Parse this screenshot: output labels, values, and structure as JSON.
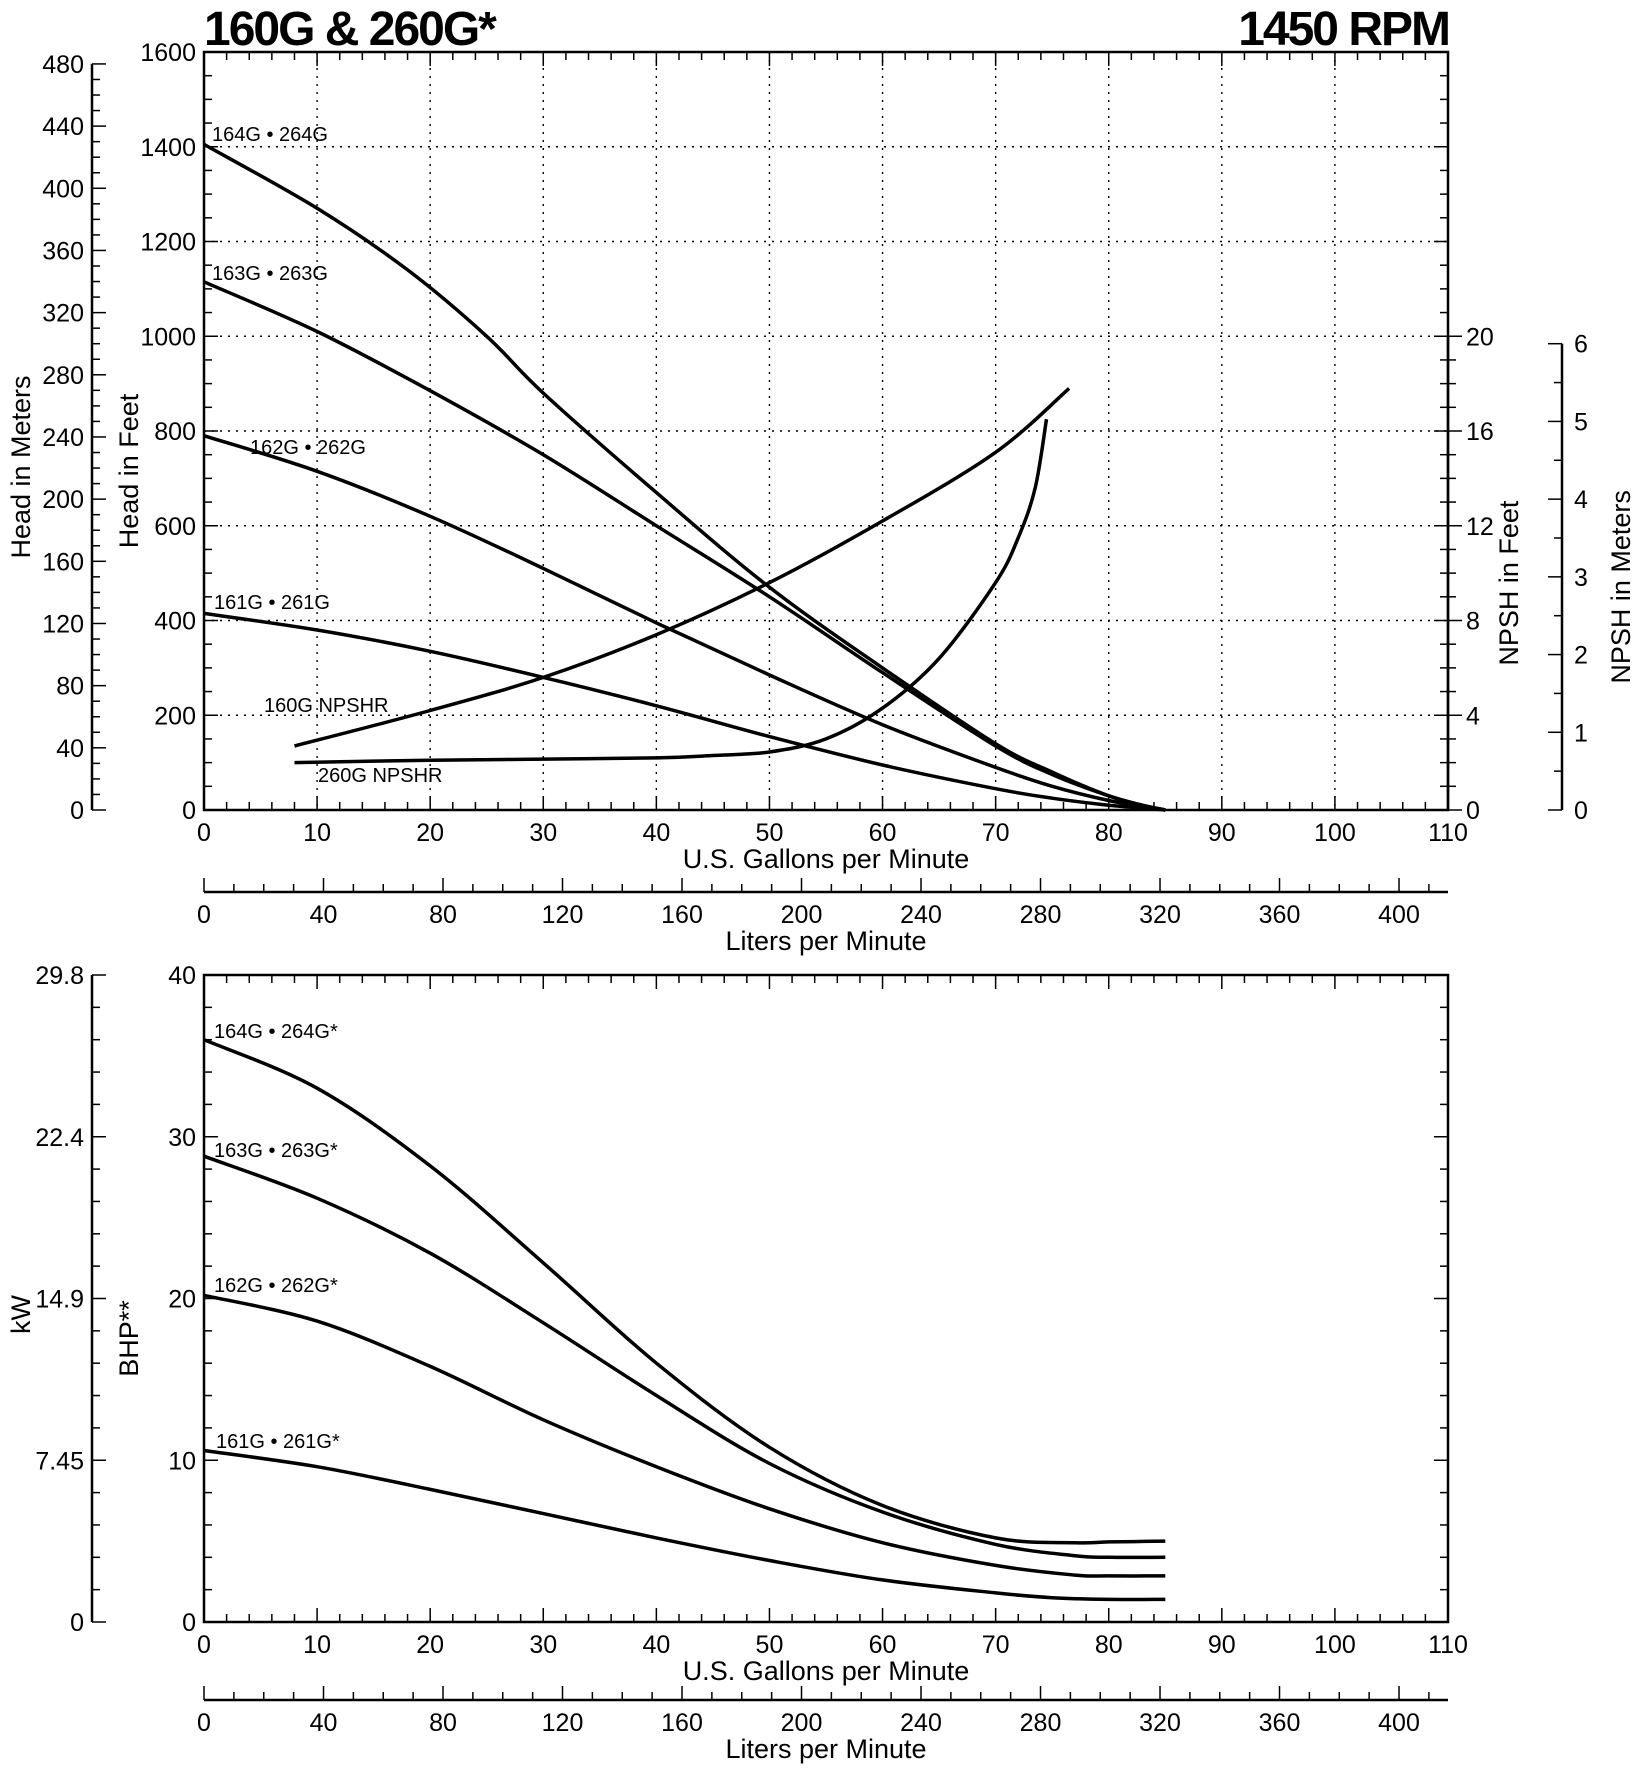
{
  "header": {
    "title_left": "160G & 260G*",
    "title_right": "1450 RPM"
  },
  "chart_data": [
    {
      "type": "line",
      "panel": "head-npsh",
      "xlabel": "U.S. Gallons per Minute",
      "xlim": [
        0,
        110
      ],
      "xticks": [
        0,
        10,
        20,
        30,
        40,
        50,
        60,
        70,
        80,
        90,
        100,
        110
      ],
      "ylabel": "Head in Feet",
      "ylim": [
        0,
        1600
      ],
      "yticks": [
        0,
        200,
        400,
        600,
        800,
        1000,
        1200,
        1400,
        1600
      ],
      "y_meters_label": "Head in Meters",
      "y_meters_ticks": [
        0,
        40,
        80,
        120,
        160,
        200,
        240,
        280,
        320,
        360,
        400,
        440,
        480
      ],
      "npsh_feet_label": "NPSH in Feet",
      "npsh_feet_ticks": [
        0,
        4,
        8,
        12,
        16,
        20
      ],
      "npsh_meters_label": "NPSH in Meters",
      "npsh_meters_ticks": [
        0,
        1,
        2,
        3,
        4,
        5,
        6
      ],
      "liters_label": "Liters per Minute",
      "liters_ticks": [
        0,
        40,
        80,
        120,
        160,
        200,
        240,
        280,
        320,
        360,
        400
      ],
      "grid": true,
      "series": [
        {
          "name": "164G • 264G",
          "x": [
            0,
            10,
            18,
            25,
            30,
            40,
            50,
            60,
            70,
            75,
            80,
            83,
            85
          ],
          "y": [
            1405,
            1270,
            1140,
            1000,
            880,
            670,
            470,
            300,
            140,
            80,
            30,
            10,
            0
          ]
        },
        {
          "name": "163G • 263G",
          "x": [
            0,
            10,
            20,
            30,
            40,
            50,
            60,
            70,
            75,
            80,
            83,
            85
          ],
          "y": [
            1115,
            1010,
            885,
            750,
            600,
            450,
            290,
            135,
            75,
            30,
            10,
            0
          ]
        },
        {
          "name": "162G • 262G",
          "x": [
            0,
            10,
            20,
            30,
            40,
            50,
            60,
            70,
            75,
            80,
            83,
            85
          ],
          "y": [
            790,
            715,
            620,
            510,
            395,
            285,
            180,
            90,
            50,
            20,
            8,
            0
          ]
        },
        {
          "name": "161G • 261G",
          "x": [
            0,
            10,
            20,
            30,
            40,
            50,
            60,
            70,
            75,
            80,
            83,
            85
          ],
          "y": [
            415,
            380,
            335,
            280,
            220,
            155,
            95,
            45,
            25,
            10,
            4,
            0
          ]
        }
      ],
      "npsh_series": [
        {
          "name": "160G NPSHR",
          "x": [
            8,
            20,
            30,
            40,
            50,
            60,
            70,
            76.5
          ],
          "y": [
            2.7,
            4.2,
            5.6,
            7.4,
            9.6,
            12.2,
            15.1,
            17.8
          ]
        },
        {
          "name": "260G NPSHR",
          "x": [
            8,
            20,
            30,
            40,
            45,
            50,
            55,
            60,
            65,
            70,
            72,
            73.5,
            74.5
          ],
          "y": [
            2.0,
            2.1,
            2.15,
            2.2,
            2.3,
            2.45,
            3.0,
            4.3,
            6.4,
            9.6,
            11.5,
            13.6,
            16.5
          ]
        }
      ]
    },
    {
      "type": "line",
      "panel": "power",
      "xlabel": "U.S. Gallons per Minute",
      "xlim": [
        0,
        110
      ],
      "xticks": [
        0,
        10,
        20,
        30,
        40,
        50,
        60,
        70,
        80,
        90,
        100,
        110
      ],
      "ylabel": "BHP**",
      "ylim": [
        0,
        40
      ],
      "yticks": [
        0,
        10,
        20,
        30,
        40
      ],
      "y_kw_label": "kW",
      "y_kw_ticks": [
        "0",
        "7.45",
        "14.9",
        "22.4",
        "29.8"
      ],
      "liters_label": "Liters per Minute",
      "liters_ticks": [
        0,
        40,
        80,
        120,
        160,
        200,
        240,
        280,
        320,
        360,
        400
      ],
      "grid": false,
      "series": [
        {
          "name": "164G • 264G*",
          "x": [
            0,
            10,
            20,
            30,
            40,
            50,
            60,
            70,
            77,
            80,
            85
          ],
          "y": [
            36.0,
            33.0,
            28.2,
            22.2,
            16.0,
            10.8,
            7.2,
            5.2,
            4.9,
            4.95,
            5.0
          ]
        },
        {
          "name": "163G • 263G*",
          "x": [
            0,
            10,
            20,
            30,
            40,
            50,
            60,
            70,
            77,
            80,
            85
          ],
          "y": [
            28.8,
            26.2,
            22.8,
            18.5,
            14.0,
            9.8,
            6.8,
            4.8,
            4.1,
            4.0,
            4.0
          ]
        },
        {
          "name": "162G • 262G*",
          "x": [
            0,
            10,
            20,
            30,
            40,
            50,
            60,
            70,
            77,
            80,
            85
          ],
          "y": [
            20.2,
            18.6,
            15.8,
            12.5,
            9.6,
            7.0,
            4.9,
            3.5,
            2.9,
            2.85,
            2.85
          ]
        },
        {
          "name": "161G • 261G*",
          "x": [
            0,
            10,
            20,
            30,
            40,
            50,
            60,
            70,
            75,
            80,
            85
          ],
          "y": [
            10.6,
            9.6,
            8.2,
            6.7,
            5.2,
            3.8,
            2.6,
            1.8,
            1.5,
            1.4,
            1.4
          ]
        }
      ]
    }
  ]
}
